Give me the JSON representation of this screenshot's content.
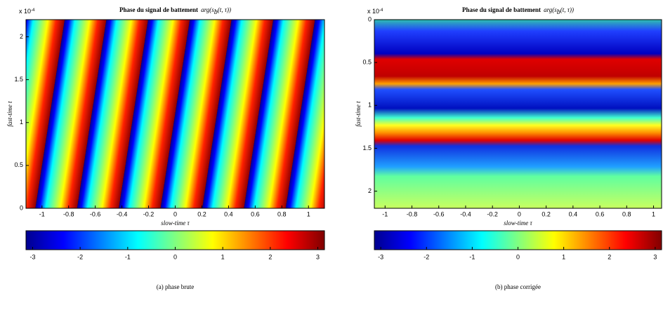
{
  "chart_data": [
    {
      "type": "heatmap",
      "title": "Phase du signal de battement",
      "title_formula": [
        "arg(s",
        "b",
        "(t, τ))"
      ],
      "x_label": "slow-time τ",
      "y_label": "fast-time t",
      "y_offset_label": "x 10",
      "y_offset_exponent": "-4",
      "xlim": [
        -1.12,
        1.12
      ],
      "xticks": [
        -1,
        -0.8,
        -0.6,
        -0.4,
        -0.2,
        0,
        0.2,
        0.4,
        0.6,
        0.8,
        1
      ],
      "ylim": [
        0,
        2.2
      ],
      "yticks": [
        0,
        0.5,
        1,
        1.5,
        2
      ],
      "y_inverted": false,
      "colorbar": {
        "lim": [
          -3.14,
          3.14
        ],
        "ticks": [
          -3,
          -2,
          -1,
          0,
          1,
          2,
          3
        ],
        "colormap": "jet"
      },
      "caption": "(a) phase brute"
    },
    {
      "type": "heatmap",
      "title": "Phase du signal de battement",
      "title_formula": [
        "arg(s",
        "b",
        "(t, τ))"
      ],
      "x_label": "slow-time τ",
      "y_label": "fast-time t",
      "y_offset_label": "x 10",
      "y_offset_exponent": "-4",
      "xlim": [
        -1.08,
        1.06
      ],
      "xticks": [
        -1,
        -0.8,
        -0.6,
        -0.4,
        -0.2,
        0,
        0.2,
        0.4,
        0.6,
        0.8,
        1
      ],
      "ylim": [
        0,
        2.2
      ],
      "yticks": [
        0,
        0.5,
        1,
        1.5,
        2
      ],
      "y_inverted": true,
      "colorbar": {
        "lim": [
          -3.14,
          3.14
        ],
        "ticks": [
          -3,
          -2,
          -1,
          0,
          1,
          2,
          3
        ],
        "colormap": "jet"
      },
      "caption": "(b) phase corrigée"
    }
  ]
}
